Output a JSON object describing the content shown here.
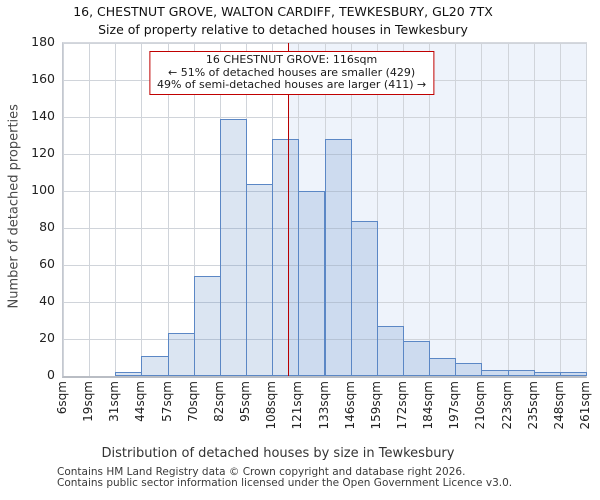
{
  "title": "16, CHESTNUT GROVE, WALTON CARDIFF, TEWKESBURY, GL20 7TX",
  "subtitle": "Size of property relative to detached houses in Tewkesbury",
  "annotation": {
    "line1": "16 CHESTNUT GROVE: 116sqm",
    "line2": "← 51% of detached houses are smaller (429)",
    "line3": "49% of semi-detached houses are larger (411) →"
  },
  "footer": {
    "line1": "Contains HM Land Registry data © Crown copyright and database right 2026.",
    "line2": "Contains public sector information licensed under the Open Government Licence v3.0."
  },
  "chart_data": {
    "type": "bar",
    "title": "16, CHESTNUT GROVE, WALTON CARDIFF, TEWKESBURY, GL20 7TX",
    "subtitle": "Size of property relative to detached houses in Tewkesbury",
    "xlabel": "Distribution of detached houses by size in Tewkesbury",
    "ylabel": "Number of detached properties",
    "bin_edges_sqm": [
      6,
      19,
      31,
      44,
      57,
      70,
      82,
      95,
      108,
      121,
      133,
      146,
      159,
      172,
      184,
      197,
      210,
      223,
      235,
      248,
      261
    ],
    "categories": [
      "6sqm",
      "19sqm",
      "31sqm",
      "44sqm",
      "57sqm",
      "70sqm",
      "82sqm",
      "95sqm",
      "108sqm",
      "121sqm",
      "133sqm",
      "146sqm",
      "159sqm",
      "172sqm",
      "184sqm",
      "197sqm",
      "210sqm",
      "223sqm",
      "235sqm",
      "248sqm",
      "261sqm"
    ],
    "values": [
      0,
      0,
      2,
      11,
      23,
      54,
      139,
      104,
      128,
      100,
      128,
      84,
      27,
      19,
      10,
      7,
      3,
      3,
      2,
      2
    ],
    "ylim": [
      0,
      180
    ],
    "ytick_step": 20,
    "grid": true,
    "legend": "none",
    "marker_value_sqm": 116,
    "colors": {
      "bar_fill_rgba": "rgba(91,135,197,0.22)",
      "bar_edge": "#5b87c5",
      "marker_line": "#b80000",
      "annotation_border": "#c00000",
      "shade_right_of_marker": "#eef3fb",
      "gridline": "#d0d4da"
    }
  }
}
